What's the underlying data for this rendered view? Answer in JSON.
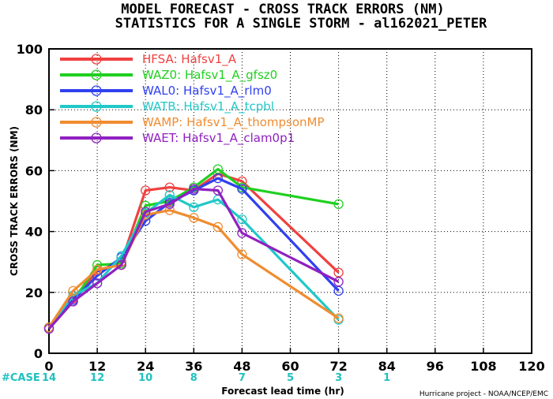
{
  "chart_data": {
    "type": "line",
    "title": "MODEL FORECAST - CROSS TRACK ERRORS (NM)",
    "subtitle": "STATISTICS FOR A SINGLE STORM - al162021_PETER",
    "xlabel": "Forecast lead time (hr)",
    "ylabel": "CROSS TRACK ERRORS (NM)",
    "xlim": [
      0,
      120
    ],
    "ylim": [
      0,
      100
    ],
    "xticks": [
      0,
      12,
      24,
      36,
      48,
      60,
      72,
      84,
      96,
      108,
      120
    ],
    "yticks": [
      0,
      20,
      40,
      60,
      80,
      100
    ],
    "grid": true,
    "legend_position": "top-left",
    "case_label": "#CASE",
    "case_counts": [
      {
        "x": 0,
        "n": "14"
      },
      {
        "x": 12,
        "n": "12"
      },
      {
        "x": 24,
        "n": "10"
      },
      {
        "x": 36,
        "n": "8"
      },
      {
        "x": 48,
        "n": "7"
      },
      {
        "x": 60,
        "n": "5"
      },
      {
        "x": 72,
        "n": "3"
      },
      {
        "x": 84,
        "n": "1"
      }
    ],
    "case_color": "#20c0c0",
    "credit": "Hurricane project - NOAA/NCEP/EMC",
    "series": [
      {
        "name": "HFSA:  Hafsv1_A",
        "color": "#f04040",
        "points": [
          [
            0,
            8.5
          ],
          [
            6,
            18
          ],
          [
            12,
            27
          ],
          [
            18,
            30
          ],
          [
            24,
            53.5
          ],
          [
            30,
            54.5
          ],
          [
            36,
            53.5
          ],
          [
            42,
            59
          ],
          [
            48,
            56.5
          ],
          [
            72,
            26.5
          ]
        ]
      },
      {
        "name": "WAZ0:  Hafsv1_A_gfsz0",
        "color": "#20d020",
        "points": [
          [
            0,
            8.5
          ],
          [
            6,
            17
          ],
          [
            12,
            29
          ],
          [
            18,
            29.5
          ],
          [
            24,
            48.5
          ],
          [
            30,
            50
          ],
          [
            36,
            54.5
          ],
          [
            42,
            60.5
          ],
          [
            48,
            54.5
          ],
          [
            72,
            49
          ]
        ]
      },
      {
        "name": "WAL0:  Hafsv1_A_rlm0",
        "color": "#3040f0",
        "points": [
          [
            0,
            8.5
          ],
          [
            6,
            17.5
          ],
          [
            12,
            25.5
          ],
          [
            18,
            31.5
          ],
          [
            24,
            43.5
          ],
          [
            30,
            49.5
          ],
          [
            36,
            53.5
          ],
          [
            42,
            57.5
          ],
          [
            48,
            54
          ],
          [
            72,
            20.5
          ]
        ]
      },
      {
        "name": "WATB:  Hafsv1_A_tcpbl",
        "color": "#20c8c8",
        "points": [
          [
            0,
            8.5
          ],
          [
            6,
            19
          ],
          [
            12,
            23
          ],
          [
            18,
            32
          ],
          [
            24,
            46
          ],
          [
            30,
            52
          ],
          [
            36,
            48
          ],
          [
            42,
            50.5
          ],
          [
            48,
            44
          ],
          [
            72,
            11
          ]
        ]
      },
      {
        "name": "WAMP:  Hafsv1_A_thompsonMP",
        "color": "#f08c30",
        "points": [
          [
            0,
            8.5
          ],
          [
            6,
            20.5
          ],
          [
            12,
            27.5
          ],
          [
            18,
            29
          ],
          [
            24,
            45.5
          ],
          [
            30,
            47
          ],
          [
            36,
            44.5
          ],
          [
            42,
            41.5
          ],
          [
            48,
            32.5
          ],
          [
            72,
            11.5
          ]
        ]
      },
      {
        "name": "WAET:  Hafsv1_A_clam0p1",
        "color": "#9020c0",
        "points": [
          [
            0,
            8
          ],
          [
            6,
            17
          ],
          [
            12,
            23
          ],
          [
            18,
            29
          ],
          [
            24,
            46.5
          ],
          [
            30,
            49
          ],
          [
            36,
            54
          ],
          [
            42,
            53.5
          ],
          [
            48,
            39.5
          ],
          [
            72,
            23.5
          ]
        ]
      }
    ]
  }
}
